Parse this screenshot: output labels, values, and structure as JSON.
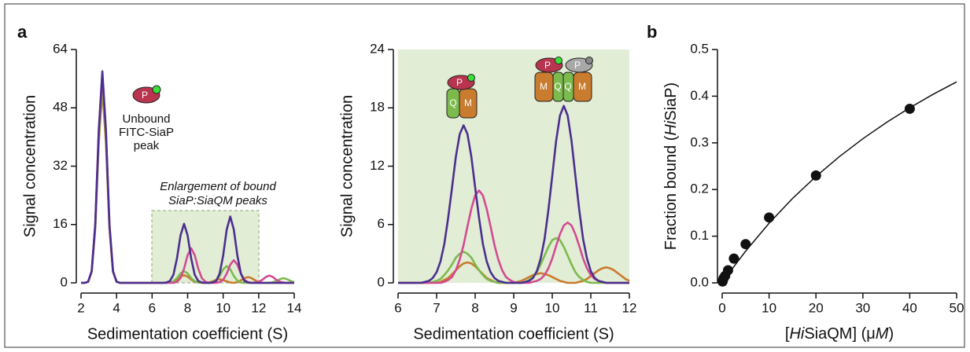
{
  "chart_data": [
    {
      "type": "line",
      "panel_label": "a",
      "y_label": "Signal concentration",
      "x_label": "Sedimentation coefficient (S)",
      "xlim": [
        2,
        14
      ],
      "xticks": [
        2,
        4,
        6,
        8,
        10,
        12,
        14
      ],
      "ylim": [
        0,
        64
      ],
      "yticks": [
        0,
        16,
        32,
        48,
        64
      ],
      "annotations": [
        "Unbound",
        "FITC-SiaP",
        "peak",
        "Enlargement of bound",
        "SiaP:SiaQM peaks"
      ],
      "icon_labels": [
        "P"
      ],
      "x": [
        2,
        2.2,
        2.4,
        2.6,
        2.8,
        3,
        3.2,
        3.4,
        3.6,
        3.8,
        4,
        4.2,
        4.4,
        4.6,
        4.8,
        5,
        5.2,
        5.4,
        5.6,
        5.8,
        6,
        6.2,
        6.4,
        6.6,
        6.8,
        7,
        7.2,
        7.4,
        7.6,
        7.8,
        8,
        8.2,
        8.4,
        8.6,
        8.8,
        9,
        9.2,
        9.4,
        9.6,
        9.8,
        10,
        10.2,
        10.4,
        10.6,
        10.8,
        11,
        11.2,
        11.4,
        11.6,
        11.8,
        12,
        12.2,
        12.4,
        12.6,
        12.8,
        13,
        13.2,
        13.4,
        13.6,
        13.8,
        14
      ],
      "series": [
        {
          "color": "#c97b2e",
          "values": [
            0,
            0,
            0.3,
            3,
            14.7,
            38.5,
            53,
            38.5,
            14.7,
            3,
            0.3,
            0,
            0,
            0,
            0,
            0,
            0,
            0,
            0,
            0,
            0,
            0,
            0,
            0,
            0,
            0.1,
            0.3,
            0.9,
            1.7,
            2.1,
            1.7,
            0.9,
            0.3,
            0.1,
            0,
            0,
            0.1,
            0.4,
            0.8,
            1,
            0.8,
            0.4,
            0.1,
            0,
            0.2,
            0.7,
            1.3,
            1.6,
            1.3,
            0.7,
            0.2,
            0,
            0,
            0,
            0,
            0,
            0,
            0,
            0,
            0,
            0
          ]
        },
        {
          "color": "#7cba4e",
          "values": [
            0,
            0,
            0.3,
            3.1,
            15.3,
            39.9,
            55,
            39.9,
            15.3,
            3.1,
            0.3,
            0,
            0,
            0,
            0,
            0,
            0,
            0,
            0,
            0,
            0,
            0,
            0,
            0,
            0,
            0.1,
            0.4,
            1.3,
            2.6,
            3.2,
            2.6,
            1.3,
            0.4,
            0.1,
            0,
            0,
            0,
            0.1,
            0.6,
            1.9,
            3.7,
            4.6,
            3.7,
            1.9,
            0.6,
            0.1,
            0,
            0,
            0,
            0,
            0,
            0,
            0,
            0,
            0.2,
            0.5,
            1,
            1.3,
            1,
            0.5,
            0.2
          ]
        },
        {
          "color": "#d24b93",
          "values": [
            0,
            0,
            0.3,
            3.2,
            15.8,
            41.4,
            57,
            41.4,
            15.8,
            3.2,
            0.3,
            0,
            0,
            0,
            0,
            0,
            0,
            0,
            0,
            0,
            0,
            0,
            0,
            0,
            0,
            0,
            0,
            0.3,
            1.3,
            3.9,
            7.6,
            9.5,
            7.6,
            3.9,
            1.3,
            0.3,
            0,
            0,
            0,
            0.2,
            0.8,
            2.5,
            5,
            6.2,
            5,
            2.5,
            0.8,
            0.2,
            0,
            0.1,
            0.3,
            0.8,
            1.6,
            2,
            1.6,
            0.8,
            0.3,
            0.1,
            0,
            0,
            0
          ]
        },
        {
          "color": "#4b2f8f",
          "values": [
            0,
            0,
            0.3,
            3.2,
            16.1,
            42.1,
            58,
            42.1,
            16.1,
            3.2,
            0.3,
            0,
            0,
            0,
            0,
            0,
            0,
            0,
            0,
            0,
            0,
            0,
            0,
            0,
            0.1,
            0.5,
            2.2,
            6.7,
            13,
            16.2,
            13,
            6.7,
            2.2,
            0.5,
            0.1,
            0,
            0,
            0.1,
            0.5,
            2.5,
            7.5,
            14.6,
            18.2,
            14.6,
            7.5,
            2.5,
            0.5,
            0.1,
            0,
            0,
            0,
            0,
            0,
            0,
            0,
            0,
            0,
            0,
            0,
            0,
            0
          ]
        }
      ]
    },
    {
      "type": "line",
      "y_label": "Signal concentration",
      "x_label": "Sedimentation coefficient (S)",
      "background": "#e2edd5",
      "xlim": [
        6,
        12
      ],
      "xticks": [
        6,
        7,
        8,
        9,
        10,
        11,
        12
      ],
      "ylim": [
        0,
        24
      ],
      "yticks": [
        0,
        6,
        12,
        18,
        24
      ],
      "icon_labels": [
        "P",
        "Q",
        "M",
        "P",
        "P",
        "M",
        "Q",
        "Q",
        "M"
      ],
      "x": [
        6,
        6.1,
        6.2,
        6.3,
        6.4,
        6.5,
        6.6,
        6.7,
        6.8,
        6.9,
        7,
        7.1,
        7.2,
        7.3,
        7.4,
        7.5,
        7.6,
        7.7,
        7.8,
        7.9,
        8,
        8.1,
        8.2,
        8.3,
        8.4,
        8.5,
        8.6,
        8.7,
        8.8,
        8.9,
        9,
        9.1,
        9.2,
        9.3,
        9.4,
        9.5,
        9.6,
        9.7,
        9.8,
        9.9,
        10,
        10.1,
        10.2,
        10.3,
        10.4,
        10.5,
        10.6,
        10.7,
        10.8,
        10.9,
        11,
        11.1,
        11.2,
        11.3,
        11.4,
        11.5,
        11.6,
        11.7,
        11.8,
        11.9,
        12
      ],
      "series": [
        {
          "color": "#c97b2e",
          "values": [
            0,
            0,
            0,
            0,
            0,
            0,
            0,
            0,
            0,
            0,
            0,
            0.1,
            0.3,
            0.5,
            0.9,
            1.3,
            1.7,
            2,
            2.1,
            2,
            1.7,
            1.3,
            0.9,
            0.5,
            0.3,
            0.1,
            0,
            0,
            0,
            0,
            0,
            0.1,
            0.2,
            0.4,
            0.6,
            0.8,
            0.9,
            1,
            0.9,
            0.8,
            0.6,
            0.4,
            0.2,
            0.1,
            0,
            0,
            0,
            0.1,
            0.2,
            0.4,
            0.7,
            1,
            1.3,
            1.5,
            1.6,
            1.5,
            1.3,
            1,
            0.7,
            0.4,
            0.2
          ]
        },
        {
          "color": "#7cba4e",
          "values": [
            0,
            0,
            0,
            0,
            0,
            0,
            0,
            0,
            0,
            0.1,
            0.2,
            0.4,
            0.8,
            1.3,
            1.9,
            2.6,
            3,
            3.2,
            3,
            2.6,
            1.9,
            1.3,
            0.8,
            0.4,
            0.2,
            0.1,
            0,
            0,
            0,
            0,
            0,
            0,
            0,
            0.1,
            0.3,
            0.6,
            1.1,
            1.9,
            2.8,
            3.7,
            4.4,
            4.6,
            4.4,
            3.7,
            2.8,
            1.9,
            1.1,
            0.6,
            0.3,
            0.1,
            0,
            0,
            0,
            0,
            0,
            0,
            0,
            0,
            0,
            0,
            0
          ]
        },
        {
          "color": "#d24b93",
          "values": [
            0,
            0,
            0,
            0,
            0,
            0,
            0,
            0,
            0,
            0,
            0,
            0,
            0.1,
            0.3,
            0.6,
            1.3,
            2.4,
            3.9,
            5.8,
            7.6,
            9,
            9.5,
            9,
            7.6,
            5.8,
            3.9,
            2.4,
            1.3,
            0.6,
            0.3,
            0.1,
            0,
            0,
            0,
            0,
            0.1,
            0.2,
            0.4,
            0.8,
            1.5,
            2.5,
            3.8,
            5,
            5.9,
            6.2,
            5.9,
            5,
            3.8,
            2.5,
            1.5,
            0.8,
            0.4,
            0.2,
            0.1,
            0,
            0,
            0,
            0,
            0,
            0,
            0
          ]
        },
        {
          "color": "#4b2f8f",
          "values": [
            0,
            0,
            0,
            0,
            0,
            0,
            0,
            0.1,
            0.2,
            0.5,
            1.1,
            2.2,
            4,
            6.7,
            9.8,
            13,
            15.3,
            16.2,
            15.3,
            13,
            9.8,
            6.7,
            4,
            2.2,
            1.1,
            0.5,
            0.2,
            0.1,
            0,
            0,
            0,
            0,
            0,
            0.1,
            0.2,
            0.5,
            1.2,
            2.5,
            4.5,
            7.5,
            11,
            14.6,
            17.2,
            18.2,
            17.2,
            14.6,
            11,
            7.5,
            4.5,
            2.5,
            1.2,
            0.5,
            0.2,
            0.1,
            0,
            0,
            0,
            0,
            0,
            0,
            0
          ]
        }
      ]
    },
    {
      "type": "scatter",
      "panel_label": "b",
      "y_label": [
        "Fraction bound (",
        "Hi",
        "SiaP)"
      ],
      "x_label": [
        "[",
        "Hi",
        "SiaQM] (μ",
        "M",
        ")"
      ],
      "xlim": [
        0,
        50
      ],
      "xticks": [
        0,
        10,
        20,
        30,
        40,
        50
      ],
      "ylim": [
        0,
        0.5
      ],
      "yticks": [
        {
          "value": 0,
          "label": "0.0"
        },
        0.1,
        0.2,
        0.3,
        0.4,
        0.5
      ],
      "color": "#111111",
      "x": [
        0.08,
        0.16,
        0.31,
        0.63,
        1.25,
        2.5,
        5,
        10,
        20,
        40
      ],
      "values": [
        0.003,
        0.006,
        0.01,
        0.015,
        0.027,
        0.052,
        0.083,
        0.14,
        0.23,
        0.373
      ],
      "fit": {
        "x": [
          0,
          2,
          5,
          10,
          15,
          20,
          25,
          30,
          35,
          40,
          45,
          50
        ],
        "values": [
          0,
          0.0283,
          0.068,
          0.1278,
          0.1808,
          0.228,
          0.2705,
          0.3088,
          0.3435,
          0.3751,
          0.4041,
          0.4307
        ]
      }
    }
  ]
}
